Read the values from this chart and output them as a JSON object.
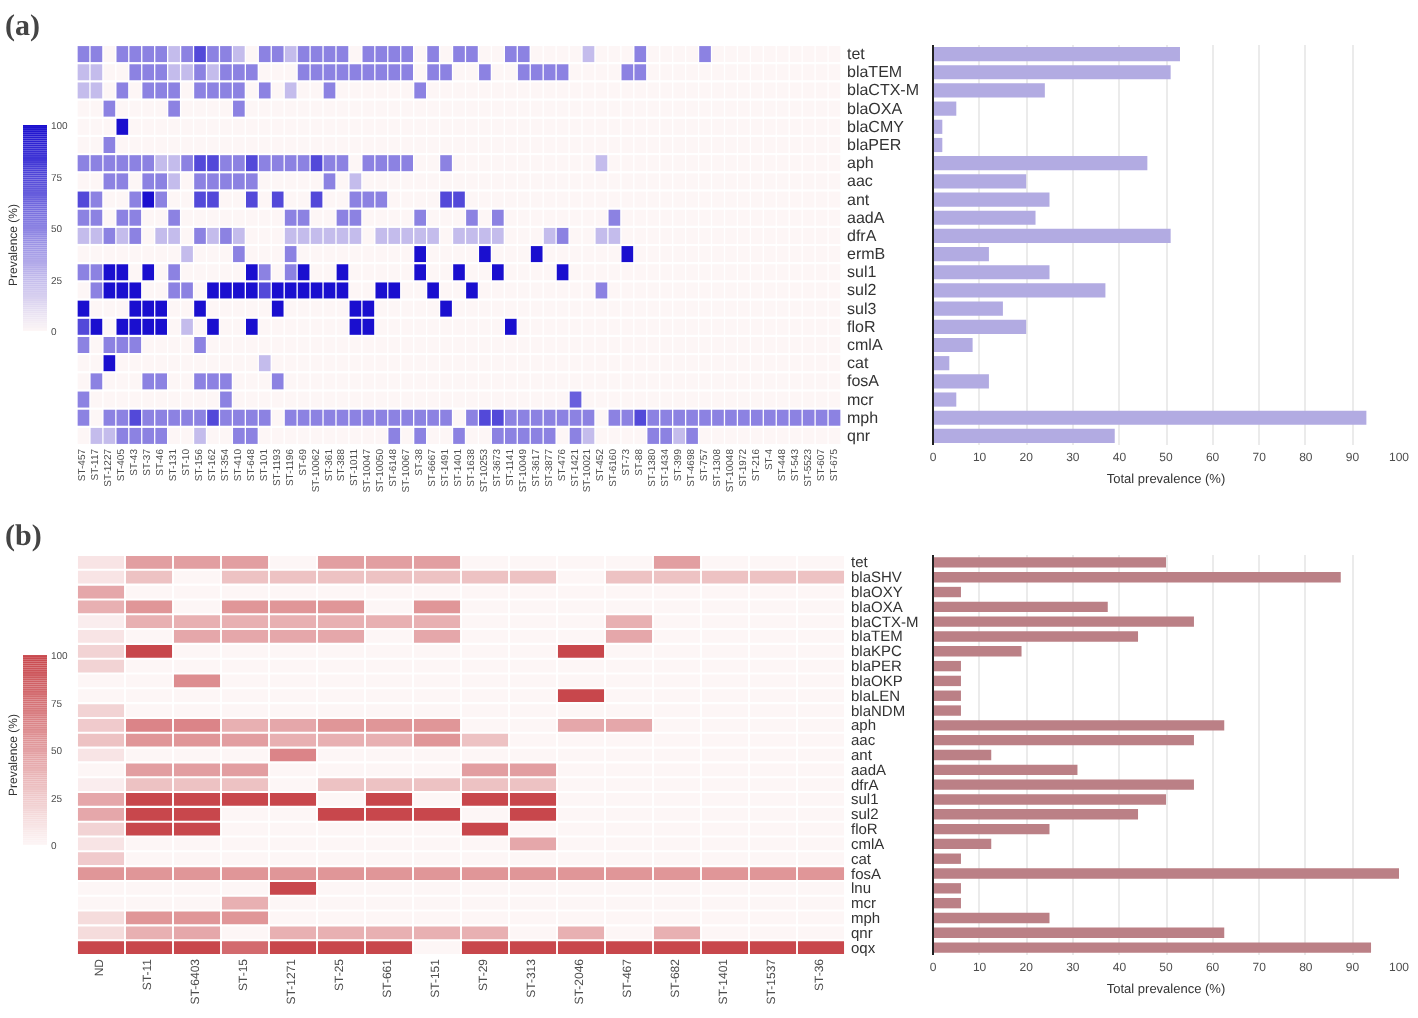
{
  "chart_data": [
    {
      "type": "heatmap",
      "title": "(a)",
      "color": "#1a0fcf",
      "clabel": "Prevalence (%)",
      "clim": [
        0,
        100
      ],
      "cticks": [
        0,
        25,
        50,
        75,
        100
      ],
      "categories": [
        "ST-457",
        "ST-117",
        "ST-1227",
        "ST-405",
        "ST-43",
        "ST-37",
        "ST-46",
        "ST-131",
        "ST-10",
        "ST-156",
        "ST-162",
        "ST-354",
        "ST-410",
        "ST-648",
        "ST-101",
        "ST-1193",
        "ST-1196",
        "ST-69",
        "ST-10062",
        "ST-361",
        "ST-388",
        "ST-1011",
        "ST-10047",
        "ST-10050",
        "ST-6148",
        "ST-10067",
        "ST-38",
        "ST-6667",
        "ST-1491",
        "ST-1401",
        "ST-1638",
        "ST-10253",
        "ST-3673",
        "ST-1141",
        "ST-10049",
        "ST-3617",
        "ST-3877",
        "ST-476",
        "ST-1421",
        "ST-10021",
        "ST-452",
        "ST-6160",
        "ST-73",
        "ST-88",
        "ST-1380",
        "ST-1434",
        "ST-399",
        "ST-4698",
        "ST-757",
        "ST-1308",
        "ST-10048",
        "ST-1972",
        "ST-216",
        "ST-4",
        "ST-448",
        "ST-543",
        "ST-5523",
        "ST-607",
        "ST-675"
      ],
      "y_categories": [
        "tet",
        "blaTEM",
        "blaCTX-M",
        "blaOXA",
        "blaCMY",
        "blaPER",
        "aph",
        "aac",
        "ant",
        "aadA",
        "dfrA",
        "ermB",
        "sul1",
        "sul2",
        "sul3",
        "floR",
        "cmlA",
        "cat",
        "fosA",
        "mcr",
        "mph",
        "qnr"
      ],
      "cells": [
        [
          50,
          50,
          0,
          50,
          50,
          50,
          50,
          25,
          50,
          75,
          50,
          50,
          25,
          0,
          50,
          50,
          25,
          50,
          50,
          50,
          50,
          0,
          50,
          50,
          50,
          50,
          0,
          50,
          0,
          50,
          50,
          0,
          0,
          50,
          50,
          0,
          0,
          0,
          0,
          25,
          0,
          0,
          0,
          50,
          0,
          0,
          0,
          0,
          50,
          0,
          0,
          0,
          0,
          0,
          0,
          0,
          0,
          0,
          0
        ],
        [
          25,
          25,
          0,
          0,
          50,
          50,
          50,
          25,
          25,
          50,
          25,
          50,
          50,
          50,
          0,
          0,
          0,
          50,
          50,
          50,
          50,
          50,
          50,
          50,
          50,
          50,
          0,
          50,
          50,
          0,
          0,
          50,
          0,
          0,
          50,
          50,
          50,
          50,
          0,
          0,
          0,
          0,
          50,
          50,
          0,
          0,
          0,
          0,
          0,
          0,
          0,
          0,
          0,
          0,
          0,
          0,
          0,
          0,
          0
        ],
        [
          25,
          25,
          0,
          50,
          0,
          50,
          50,
          50,
          0,
          50,
          50,
          50,
          50,
          0,
          50,
          0,
          25,
          0,
          0,
          50,
          0,
          0,
          0,
          0,
          0,
          0,
          50,
          0,
          0,
          0,
          0,
          0,
          0,
          0,
          0,
          0,
          0,
          0,
          0,
          0,
          0,
          0,
          0,
          0,
          0,
          0,
          0,
          0,
          0,
          0,
          0,
          0,
          0,
          0,
          0,
          0,
          0,
          0,
          0
        ],
        [
          0,
          0,
          50,
          0,
          0,
          0,
          0,
          50,
          0,
          0,
          0,
          0,
          50,
          0,
          0,
          0,
          0,
          0,
          0,
          0,
          0,
          0,
          0,
          0,
          0,
          0,
          0,
          0,
          0,
          0,
          0,
          0,
          0,
          0,
          0,
          0,
          0,
          0,
          0,
          0,
          0,
          0,
          0,
          0,
          0,
          0,
          0,
          0,
          0,
          0,
          0,
          0,
          0,
          0,
          0,
          0,
          0,
          0,
          0
        ],
        [
          0,
          0,
          0,
          100,
          0,
          0,
          0,
          0,
          0,
          0,
          0,
          0,
          0,
          0,
          0,
          0,
          0,
          0,
          0,
          0,
          0,
          0,
          0,
          0,
          0,
          0,
          0,
          0,
          0,
          0,
          0,
          0,
          0,
          0,
          0,
          0,
          0,
          0,
          0,
          0,
          0,
          0,
          0,
          0,
          0,
          0,
          0,
          0,
          0,
          0,
          0,
          0,
          0,
          0,
          0,
          0,
          0,
          0,
          0
        ],
        [
          0,
          0,
          50,
          0,
          0,
          0,
          0,
          0,
          0,
          0,
          0,
          0,
          0,
          0,
          0,
          0,
          0,
          0,
          0,
          0,
          0,
          0,
          0,
          0,
          0,
          0,
          0,
          0,
          0,
          0,
          0,
          0,
          0,
          0,
          0,
          0,
          0,
          0,
          0,
          0,
          0,
          0,
          0,
          0,
          0,
          0,
          0,
          0,
          0,
          0,
          0,
          0,
          0,
          0,
          0,
          0,
          0,
          0,
          0
        ],
        [
          50,
          50,
          50,
          50,
          50,
          50,
          25,
          25,
          50,
          75,
          75,
          50,
          50,
          75,
          50,
          50,
          50,
          50,
          75,
          50,
          50,
          0,
          50,
          50,
          50,
          50,
          0,
          0,
          50,
          0,
          0,
          0,
          0,
          0,
          0,
          0,
          0,
          0,
          0,
          0,
          25,
          0,
          0,
          0,
          0,
          0,
          0,
          0,
          0,
          0,
          0,
          0,
          0,
          0,
          0,
          0,
          0,
          0,
          0
        ],
        [
          0,
          0,
          50,
          50,
          0,
          50,
          50,
          25,
          0,
          50,
          50,
          50,
          50,
          50,
          0,
          0,
          0,
          0,
          0,
          50,
          0,
          25,
          0,
          0,
          0,
          0,
          0,
          0,
          0,
          0,
          0,
          0,
          0,
          0,
          0,
          0,
          0,
          0,
          0,
          0,
          0,
          0,
          0,
          0,
          0,
          0,
          0,
          0,
          0,
          0,
          0,
          0,
          0,
          0,
          0,
          0,
          0,
          0,
          0
        ],
        [
          75,
          50,
          0,
          0,
          50,
          100,
          50,
          0,
          0,
          75,
          75,
          0,
          0,
          75,
          0,
          75,
          0,
          0,
          75,
          0,
          0,
          50,
          50,
          50,
          0,
          0,
          0,
          0,
          75,
          75,
          0,
          0,
          0,
          0,
          0,
          0,
          0,
          0,
          0,
          0,
          0,
          0,
          0,
          0,
          0,
          0,
          0,
          0,
          0,
          0,
          0,
          0,
          0,
          0,
          0,
          0,
          0,
          0,
          0
        ],
        [
          50,
          50,
          0,
          50,
          50,
          0,
          0,
          50,
          0,
          0,
          0,
          0,
          0,
          0,
          0,
          0,
          50,
          50,
          0,
          0,
          50,
          50,
          0,
          0,
          0,
          0,
          50,
          0,
          0,
          0,
          50,
          0,
          50,
          0,
          0,
          0,
          0,
          0,
          0,
          0,
          0,
          50,
          0,
          0,
          0,
          0,
          0,
          0,
          0,
          0,
          0,
          0,
          0,
          0,
          0,
          0,
          0,
          0,
          0
        ],
        [
          25,
          25,
          50,
          25,
          50,
          0,
          25,
          25,
          0,
          50,
          25,
          50,
          25,
          0,
          0,
          0,
          25,
          25,
          25,
          25,
          25,
          25,
          0,
          25,
          25,
          25,
          25,
          25,
          0,
          25,
          25,
          25,
          25,
          0,
          0,
          0,
          25,
          50,
          0,
          0,
          25,
          25,
          0,
          0,
          0,
          0,
          0,
          0,
          0,
          0,
          0,
          0,
          0,
          0,
          0,
          0,
          0,
          0,
          0
        ],
        [
          0,
          0,
          0,
          0,
          0,
          0,
          0,
          0,
          25,
          0,
          0,
          0,
          50,
          0,
          0,
          0,
          50,
          0,
          0,
          0,
          0,
          0,
          0,
          0,
          0,
          0,
          100,
          0,
          0,
          0,
          0,
          100,
          0,
          0,
          0,
          100,
          0,
          0,
          0,
          0,
          0,
          0,
          100,
          0,
          0,
          0,
          0,
          0,
          0,
          0,
          0,
          0,
          0,
          0,
          0,
          0,
          0,
          0,
          0
        ],
        [
          50,
          50,
          100,
          100,
          0,
          100,
          0,
          50,
          0,
          0,
          0,
          0,
          0,
          100,
          50,
          0,
          50,
          100,
          0,
          0,
          100,
          0,
          0,
          0,
          0,
          0,
          100,
          0,
          0,
          100,
          0,
          0,
          100,
          0,
          0,
          0,
          0,
          100,
          0,
          0,
          0,
          0,
          0,
          0,
          0,
          0,
          0,
          0,
          0,
          0,
          0,
          0,
          0,
          0,
          0,
          0,
          0,
          0,
          0
        ],
        [
          0,
          50,
          100,
          100,
          100,
          0,
          0,
          50,
          50,
          0,
          100,
          100,
          100,
          100,
          75,
          100,
          100,
          100,
          100,
          100,
          100,
          0,
          0,
          100,
          100,
          0,
          0,
          100,
          0,
          0,
          100,
          0,
          0,
          0,
          0,
          0,
          0,
          0,
          0,
          0,
          50,
          0,
          0,
          0,
          0,
          0,
          0,
          0,
          0,
          0,
          0,
          0,
          0,
          0,
          0,
          0,
          0,
          0,
          0
        ],
        [
          100,
          0,
          0,
          0,
          100,
          100,
          100,
          0,
          0,
          100,
          0,
          0,
          0,
          0,
          0,
          100,
          0,
          0,
          0,
          0,
          0,
          100,
          100,
          0,
          0,
          0,
          0,
          0,
          100,
          0,
          0,
          0,
          0,
          0,
          0,
          0,
          0,
          0,
          0,
          0,
          0,
          0,
          0,
          0,
          0,
          0,
          0,
          0,
          0,
          0,
          0,
          0,
          0,
          0,
          0,
          0,
          0,
          0,
          0
        ],
        [
          75,
          100,
          0,
          100,
          100,
          100,
          100,
          0,
          25,
          0,
          100,
          0,
          0,
          100,
          0,
          0,
          0,
          0,
          0,
          0,
          0,
          100,
          100,
          0,
          0,
          0,
          0,
          0,
          0,
          0,
          0,
          0,
          0,
          100,
          0,
          0,
          0,
          0,
          0,
          0,
          0,
          0,
          0,
          0,
          0,
          0,
          0,
          0,
          0,
          0,
          0,
          0,
          0,
          0,
          0,
          0,
          0,
          0,
          0
        ],
        [
          50,
          0,
          50,
          50,
          50,
          0,
          0,
          0,
          0,
          50,
          0,
          0,
          0,
          0,
          0,
          0,
          0,
          0,
          0,
          0,
          0,
          0,
          0,
          0,
          0,
          0,
          0,
          0,
          0,
          0,
          0,
          0,
          0,
          0,
          0,
          0,
          0,
          0,
          0,
          0,
          0,
          0,
          0,
          0,
          0,
          0,
          0,
          0,
          0,
          0,
          0,
          0,
          0,
          0,
          0,
          0,
          0,
          0,
          0
        ],
        [
          0,
          0,
          100,
          0,
          0,
          0,
          0,
          0,
          0,
          0,
          0,
          0,
          0,
          0,
          25,
          0,
          0,
          0,
          0,
          0,
          0,
          0,
          0,
          0,
          0,
          0,
          0,
          0,
          0,
          0,
          0,
          0,
          0,
          0,
          0,
          0,
          0,
          0,
          0,
          0,
          0,
          0,
          0,
          0,
          0,
          0,
          0,
          0,
          0,
          0,
          0,
          0,
          0,
          0,
          0,
          0,
          0,
          0,
          0
        ],
        [
          0,
          50,
          0,
          0,
          0,
          50,
          50,
          0,
          0,
          50,
          50,
          50,
          0,
          0,
          0,
          50,
          0,
          0,
          0,
          0,
          0,
          0,
          0,
          0,
          0,
          0,
          0,
          0,
          0,
          0,
          0,
          0,
          0,
          0,
          0,
          0,
          0,
          0,
          0,
          0,
          0,
          0,
          0,
          0,
          0,
          0,
          0,
          0,
          0,
          0,
          0,
          0,
          0,
          0,
          0,
          0,
          0,
          0,
          0
        ],
        [
          50,
          0,
          0,
          0,
          0,
          0,
          0,
          0,
          0,
          0,
          0,
          50,
          0,
          0,
          0,
          0,
          0,
          0,
          0,
          0,
          0,
          0,
          0,
          0,
          0,
          0,
          0,
          0,
          0,
          0,
          0,
          0,
          0,
          0,
          0,
          0,
          0,
          0,
          65,
          0,
          0,
          0,
          0,
          0,
          0,
          0,
          0,
          0,
          0,
          0,
          0,
          0,
          0,
          0,
          0,
          0,
          0,
          0,
          0
        ],
        [
          50,
          0,
          50,
          50,
          75,
          50,
          50,
          50,
          50,
          50,
          75,
          50,
          50,
          50,
          50,
          0,
          50,
          50,
          50,
          50,
          50,
          50,
          50,
          50,
          50,
          50,
          50,
          50,
          50,
          0,
          50,
          75,
          75,
          50,
          50,
          50,
          50,
          50,
          50,
          50,
          0,
          50,
          50,
          75,
          50,
          50,
          50,
          50,
          50,
          50,
          50,
          50,
          50,
          50,
          50,
          50,
          50,
          50,
          50
        ],
        [
          0,
          25,
          25,
          50,
          50,
          50,
          50,
          0,
          0,
          25,
          0,
          0,
          50,
          50,
          0,
          0,
          0,
          0,
          0,
          0,
          0,
          0,
          0,
          0,
          50,
          0,
          50,
          0,
          0,
          50,
          0,
          0,
          50,
          50,
          50,
          50,
          50,
          0,
          50,
          25,
          0,
          0,
          0,
          0,
          50,
          50,
          25,
          50,
          0,
          0,
          0,
          0,
          0,
          0,
          0,
          0,
          0,
          0,
          0
        ]
      ]
    },
    {
      "type": "bar",
      "orientation": "horizontal",
      "color": "#b2abe2",
      "categories": [
        null,
        null,
        null,
        null,
        null,
        null,
        null,
        null,
        null,
        null,
        null,
        null,
        null,
        null,
        null,
        null,
        null,
        null,
        null,
        null,
        null,
        null
      ],
      "values": [
        53,
        51,
        24,
        5,
        2,
        2,
        46,
        20,
        25,
        22,
        51,
        12,
        25,
        37,
        15,
        20,
        8.5,
        3.5,
        12,
        5,
        93,
        39
      ],
      "xlim": [
        0,
        100
      ],
      "xticks": [
        0,
        10,
        20,
        30,
        40,
        50,
        60,
        70,
        80,
        90,
        100
      ],
      "xlabel": "Total prevalence (%)",
      "grid": "x",
      "tick_labels": "x"
    },
    {
      "type": "heatmap",
      "title": "(b)",
      "color": "#c8474c",
      "clabel": "Prevalence (%)",
      "clim": [
        0,
        100
      ],
      "cticks": [
        0,
        25,
        50,
        75,
        100
      ],
      "categories": [
        "ND",
        "ST-11",
        "ST-6403",
        "ST-15",
        "ST-1271",
        "ST-25",
        "ST-661",
        "ST-151",
        "ST-29",
        "ST-313",
        "ST-2046",
        "ST-467",
        "ST-682",
        "ST-1401",
        "ST-1537",
        "ST-36"
      ],
      "y_categories": [
        "tet",
        "blaSHV",
        "blaOXY",
        "blaOXA",
        "blaCTX-M",
        "blaTEM",
        "blaKPC",
        "blaPER",
        "blaOKP",
        "blaLEN",
        "blaNDM",
        "aph",
        "aac",
        "ant",
        "aadA",
        "dfrA",
        "sul1",
        "sul2",
        "floR",
        "cmlA",
        "cat",
        "fosA",
        "lnu",
        "mcr",
        "mph",
        "qnr",
        "oqx"
      ],
      "cells": [
        [
          10,
          50,
          50,
          50,
          0,
          50,
          50,
          50,
          0,
          0,
          0,
          0,
          50,
          0,
          0,
          0
        ],
        [
          10,
          30,
          0,
          30,
          30,
          30,
          30,
          30,
          30,
          30,
          0,
          30,
          30,
          30,
          30,
          30
        ],
        [
          45,
          0,
          0,
          0,
          0,
          0,
          0,
          0,
          0,
          0,
          0,
          0,
          0,
          0,
          0,
          0
        ],
        [
          40,
          55,
          0,
          55,
          55,
          55,
          0,
          55,
          0,
          0,
          0,
          0,
          0,
          0,
          0,
          0
        ],
        [
          5,
          40,
          40,
          40,
          40,
          40,
          40,
          40,
          0,
          0,
          0,
          40,
          0,
          0,
          0,
          0
        ],
        [
          10,
          0,
          45,
          45,
          45,
          45,
          0,
          45,
          0,
          0,
          0,
          45,
          0,
          0,
          0,
          0
        ],
        [
          20,
          100,
          0,
          0,
          0,
          0,
          0,
          0,
          0,
          0,
          100,
          0,
          0,
          0,
          0,
          0
        ],
        [
          20,
          0,
          0,
          0,
          0,
          0,
          0,
          0,
          0,
          0,
          0,
          0,
          0,
          0,
          0,
          0
        ],
        [
          0,
          0,
          60,
          0,
          0,
          0,
          0,
          0,
          0,
          0,
          0,
          0,
          0,
          0,
          0,
          0
        ],
        [
          0,
          0,
          0,
          0,
          0,
          0,
          0,
          0,
          0,
          0,
          100,
          0,
          0,
          0,
          0,
          0
        ],
        [
          20,
          0,
          0,
          0,
          0,
          0,
          0,
          0,
          0,
          0,
          0,
          0,
          0,
          0,
          0,
          0
        ],
        [
          25,
          65,
          65,
          40,
          45,
          55,
          55,
          55,
          0,
          0,
          45,
          45,
          0,
          0,
          0,
          0
        ],
        [
          30,
          55,
          55,
          50,
          40,
          40,
          40,
          55,
          30,
          0,
          0,
          0,
          0,
          0,
          0,
          0
        ],
        [
          10,
          0,
          0,
          0,
          65,
          0,
          0,
          0,
          0,
          0,
          0,
          0,
          0,
          0,
          0,
          0
        ],
        [
          0,
          50,
          50,
          50,
          0,
          0,
          0,
          0,
          50,
          50,
          0,
          0,
          0,
          0,
          0,
          0
        ],
        [
          5,
          30,
          30,
          30,
          0,
          30,
          30,
          30,
          30,
          30,
          0,
          0,
          0,
          0,
          0,
          0
        ],
        [
          45,
          100,
          100,
          100,
          100,
          0,
          100,
          0,
          100,
          100,
          0,
          0,
          0,
          0,
          0,
          0
        ],
        [
          45,
          100,
          100,
          0,
          0,
          100,
          100,
          100,
          0,
          100,
          0,
          0,
          0,
          0,
          0,
          0
        ],
        [
          20,
          100,
          100,
          0,
          0,
          0,
          0,
          0,
          100,
          0,
          0,
          0,
          0,
          0,
          0,
          0
        ],
        [
          10,
          0,
          0,
          0,
          0,
          0,
          0,
          0,
          0,
          45,
          0,
          0,
          0,
          0,
          0,
          0
        ],
        [
          25,
          0,
          0,
          0,
          0,
          0,
          0,
          0,
          0,
          0,
          0,
          0,
          0,
          0,
          0,
          0
        ],
        [
          55,
          55,
          55,
          55,
          55,
          55,
          55,
          55,
          55,
          55,
          55,
          55,
          55,
          55,
          55,
          55
        ],
        [
          0,
          0,
          0,
          0,
          100,
          0,
          0,
          0,
          0,
          0,
          0,
          0,
          0,
          0,
          0,
          0
        ],
        [
          0,
          0,
          0,
          40,
          0,
          0,
          0,
          0,
          0,
          0,
          0,
          0,
          0,
          0,
          0,
          0
        ],
        [
          15,
          55,
          55,
          55,
          0,
          0,
          0,
          0,
          0,
          0,
          0,
          0,
          0,
          0,
          0,
          0
        ],
        [
          15,
          40,
          45,
          0,
          40,
          40,
          40,
          40,
          40,
          0,
          40,
          0,
          40,
          0,
          0,
          0
        ],
        [
          100,
          100,
          100,
          80,
          100,
          100,
          100,
          0,
          100,
          100,
          100,
          100,
          100,
          100,
          100,
          100
        ]
      ]
    },
    {
      "type": "bar",
      "orientation": "horizontal",
      "color": "#bb8086",
      "categories": [
        null,
        null,
        null,
        null,
        null,
        null,
        null,
        null,
        null,
        null,
        null,
        null,
        null,
        null,
        null,
        null,
        null,
        null,
        null,
        null,
        null,
        null,
        null,
        null,
        null,
        null,
        null
      ],
      "values": [
        50,
        87.5,
        6,
        37.5,
        56,
        44,
        19,
        6,
        6,
        6,
        6,
        62.5,
        56,
        12.5,
        31,
        56,
        50,
        44,
        25,
        12.5,
        6,
        100,
        6,
        6,
        25,
        62.5,
        94
      ],
      "xlim": [
        0,
        100
      ],
      "xticks": [
        0,
        10,
        20,
        30,
        40,
        50,
        60,
        70,
        80,
        90,
        100
      ],
      "xlabel": "Total prevalence (%)",
      "grid": "x",
      "tick_labels": "x"
    }
  ]
}
